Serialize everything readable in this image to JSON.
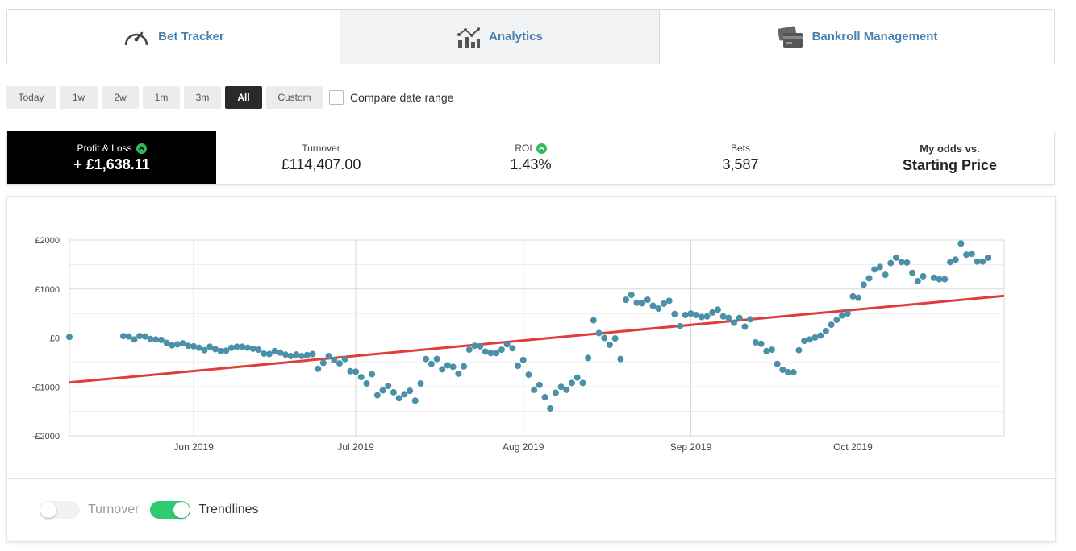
{
  "nav": {
    "tabs": [
      {
        "label": "Bet Tracker",
        "icon": "speedometer-icon"
      },
      {
        "label": "Analytics",
        "icon": "analytics-chart-icon"
      },
      {
        "label": "Bankroll Management",
        "icon": "wallet-cards-icon"
      }
    ],
    "active_tab": 1
  },
  "ranges": {
    "buttons": [
      "Today",
      "1w",
      "2w",
      "1m",
      "3m",
      "All",
      "Custom"
    ],
    "active": "All",
    "compare_label": "Compare date range"
  },
  "stats": {
    "profit_loss": {
      "label": "Profit & Loss",
      "value": "+ £1,638.11"
    },
    "turnover": {
      "label": "Turnover",
      "value": "£114,407.00"
    },
    "roi": {
      "label": "ROI",
      "value": "1.43%"
    },
    "bets": {
      "label": "Bets",
      "value": "3,587"
    },
    "odds": {
      "label": "My odds vs.",
      "value": "Starting Price"
    }
  },
  "colors": {
    "accent_link": "#4a7fb0",
    "positive": "#2dbb5b",
    "series_point": "#4a90a8",
    "trendline": "#e03c3c",
    "toggle_on": "#2ecc71"
  },
  "chart_data": {
    "type": "scatter",
    "y_ticks": [
      "£2000",
      "£1000",
      "£0",
      "-£1000",
      "-£2000"
    ],
    "ylim": [
      -2000,
      2000
    ],
    "x_ticks": [
      "Jun 2019",
      "Jul 2019",
      "Aug 2019",
      "Sep 2019",
      "Oct 2019"
    ],
    "xlim": [
      "2019-05-09",
      "2019-10-29"
    ],
    "grid": true,
    "series": [
      {
        "points": [
          [
            "2019-05-09",
            20
          ],
          [
            "2019-05-19",
            40
          ],
          [
            "2019-05-20",
            30
          ],
          [
            "2019-05-21",
            -30
          ],
          [
            "2019-05-22",
            40
          ],
          [
            "2019-05-23",
            30
          ],
          [
            "2019-05-24",
            -20
          ],
          [
            "2019-05-25",
            -30
          ],
          [
            "2019-05-26",
            -40
          ],
          [
            "2019-05-27",
            -100
          ],
          [
            "2019-05-28",
            -150
          ],
          [
            "2019-05-29",
            -130
          ],
          [
            "2019-05-30",
            -110
          ],
          [
            "2019-05-31",
            -160
          ],
          [
            "2019-06-01",
            -170
          ],
          [
            "2019-06-02",
            -200
          ],
          [
            "2019-06-03",
            -250
          ],
          [
            "2019-06-04",
            -180
          ],
          [
            "2019-06-05",
            -230
          ],
          [
            "2019-06-06",
            -270
          ],
          [
            "2019-06-07",
            -260
          ],
          [
            "2019-06-08",
            -200
          ],
          [
            "2019-06-09",
            -180
          ],
          [
            "2019-06-10",
            -180
          ],
          [
            "2019-06-11",
            -200
          ],
          [
            "2019-06-12",
            -220
          ],
          [
            "2019-06-13",
            -240
          ],
          [
            "2019-06-14",
            -320
          ],
          [
            "2019-06-15",
            -330
          ],
          [
            "2019-06-16",
            -270
          ],
          [
            "2019-06-17",
            -300
          ],
          [
            "2019-06-18",
            -340
          ],
          [
            "2019-06-19",
            -370
          ],
          [
            "2019-06-20",
            -340
          ],
          [
            "2019-06-21",
            -370
          ],
          [
            "2019-06-22",
            -350
          ],
          [
            "2019-06-23",
            -330
          ],
          [
            "2019-06-24",
            -630
          ],
          [
            "2019-06-25",
            -510
          ],
          [
            "2019-06-26",
            -370
          ],
          [
            "2019-06-27",
            -450
          ],
          [
            "2019-06-28",
            -520
          ],
          [
            "2019-06-29",
            -430
          ],
          [
            "2019-06-30",
            -680
          ],
          [
            "2019-07-01",
            -690
          ],
          [
            "2019-07-02",
            -800
          ],
          [
            "2019-07-03",
            -930
          ],
          [
            "2019-07-04",
            -740
          ],
          [
            "2019-07-05",
            -1170
          ],
          [
            "2019-07-06",
            -1070
          ],
          [
            "2019-07-07",
            -980
          ],
          [
            "2019-07-08",
            -1110
          ],
          [
            "2019-07-09",
            -1230
          ],
          [
            "2019-07-10",
            -1150
          ],
          [
            "2019-07-11",
            -1080
          ],
          [
            "2019-07-12",
            -1280
          ],
          [
            "2019-07-13",
            -930
          ],
          [
            "2019-07-14",
            -430
          ],
          [
            "2019-07-15",
            -530
          ],
          [
            "2019-07-16",
            -430
          ],
          [
            "2019-07-17",
            -640
          ],
          [
            "2019-07-18",
            -560
          ],
          [
            "2019-07-19",
            -590
          ],
          [
            "2019-07-20",
            -730
          ],
          [
            "2019-07-21",
            -580
          ],
          [
            "2019-07-22",
            -240
          ],
          [
            "2019-07-23",
            -160
          ],
          [
            "2019-07-24",
            -170
          ],
          [
            "2019-07-25",
            -280
          ],
          [
            "2019-07-26",
            -310
          ],
          [
            "2019-07-27",
            -310
          ],
          [
            "2019-07-28",
            -240
          ],
          [
            "2019-07-29",
            -130
          ],
          [
            "2019-07-30",
            -210
          ],
          [
            "2019-07-31",
            -570
          ],
          [
            "2019-08-01",
            -450
          ],
          [
            "2019-08-02",
            -750
          ],
          [
            "2019-08-03",
            -1060
          ],
          [
            "2019-08-04",
            -960
          ],
          [
            "2019-08-05",
            -1210
          ],
          [
            "2019-08-06",
            -1440
          ],
          [
            "2019-08-07",
            -1120
          ],
          [
            "2019-08-08",
            -1000
          ],
          [
            "2019-08-09",
            -1060
          ],
          [
            "2019-08-10",
            -920
          ],
          [
            "2019-08-11",
            -810
          ],
          [
            "2019-08-12",
            -920
          ],
          [
            "2019-08-13",
            -410
          ],
          [
            "2019-08-14",
            360
          ],
          [
            "2019-08-15",
            100
          ],
          [
            "2019-08-16",
            0
          ],
          [
            "2019-08-17",
            -140
          ],
          [
            "2019-08-18",
            -10
          ],
          [
            "2019-08-19",
            -430
          ],
          [
            "2019-08-20",
            780
          ],
          [
            "2019-08-21",
            880
          ],
          [
            "2019-08-22",
            720
          ],
          [
            "2019-08-23",
            710
          ],
          [
            "2019-08-24",
            780
          ],
          [
            "2019-08-25",
            660
          ],
          [
            "2019-08-26",
            600
          ],
          [
            "2019-08-27",
            700
          ],
          [
            "2019-08-28",
            760
          ],
          [
            "2019-08-29",
            490
          ],
          [
            "2019-08-30",
            240
          ],
          [
            "2019-08-31",
            470
          ],
          [
            "2019-09-01",
            500
          ],
          [
            "2019-09-02",
            470
          ],
          [
            "2019-09-03",
            430
          ],
          [
            "2019-09-04",
            440
          ],
          [
            "2019-09-05",
            520
          ],
          [
            "2019-09-06",
            580
          ],
          [
            "2019-09-07",
            440
          ],
          [
            "2019-09-08",
            410
          ],
          [
            "2019-09-09",
            310
          ],
          [
            "2019-09-10",
            410
          ],
          [
            "2019-09-11",
            230
          ],
          [
            "2019-09-12",
            380
          ],
          [
            "2019-09-13",
            -90
          ],
          [
            "2019-09-14",
            -120
          ],
          [
            "2019-09-15",
            -270
          ],
          [
            "2019-09-16",
            -240
          ],
          [
            "2019-09-17",
            -530
          ],
          [
            "2019-09-18",
            -650
          ],
          [
            "2019-09-19",
            -700
          ],
          [
            "2019-09-20",
            -700
          ],
          [
            "2019-09-21",
            -250
          ],
          [
            "2019-09-22",
            -60
          ],
          [
            "2019-09-23",
            -30
          ],
          [
            "2019-09-24",
            10
          ],
          [
            "2019-09-25",
            50
          ],
          [
            "2019-09-26",
            140
          ],
          [
            "2019-09-27",
            270
          ],
          [
            "2019-09-28",
            370
          ],
          [
            "2019-09-29",
            460
          ],
          [
            "2019-09-30",
            500
          ],
          [
            "2019-10-01",
            850
          ],
          [
            "2019-10-02",
            820
          ],
          [
            "2019-10-03",
            1090
          ],
          [
            "2019-10-04",
            1220
          ],
          [
            "2019-10-05",
            1400
          ],
          [
            "2019-10-06",
            1450
          ],
          [
            "2019-10-07",
            1290
          ],
          [
            "2019-10-08",
            1530
          ],
          [
            "2019-10-09",
            1640
          ],
          [
            "2019-10-10",
            1550
          ],
          [
            "2019-10-11",
            1540
          ],
          [
            "2019-10-12",
            1330
          ],
          [
            "2019-10-13",
            1160
          ],
          [
            "2019-10-14",
            1260
          ],
          [
            "2019-10-16",
            1230
          ],
          [
            "2019-10-17",
            1200
          ],
          [
            "2019-10-18",
            1200
          ],
          [
            "2019-10-19",
            1550
          ],
          [
            "2019-10-20",
            1600
          ],
          [
            "2019-10-21",
            1930
          ],
          [
            "2019-10-22",
            1700
          ],
          [
            "2019-10-23",
            1720
          ],
          [
            "2019-10-24",
            1560
          ],
          [
            "2019-10-25",
            1560
          ],
          [
            "2019-10-26",
            1640
          ]
        ]
      }
    ],
    "trendline": {
      "start": [
        "2019-05-09",
        -910
      ],
      "end": [
        "2019-10-29",
        860
      ]
    }
  },
  "toggles": [
    {
      "label": "Turnover",
      "state": "off"
    },
    {
      "label": "Trendlines",
      "state": "on"
    }
  ]
}
